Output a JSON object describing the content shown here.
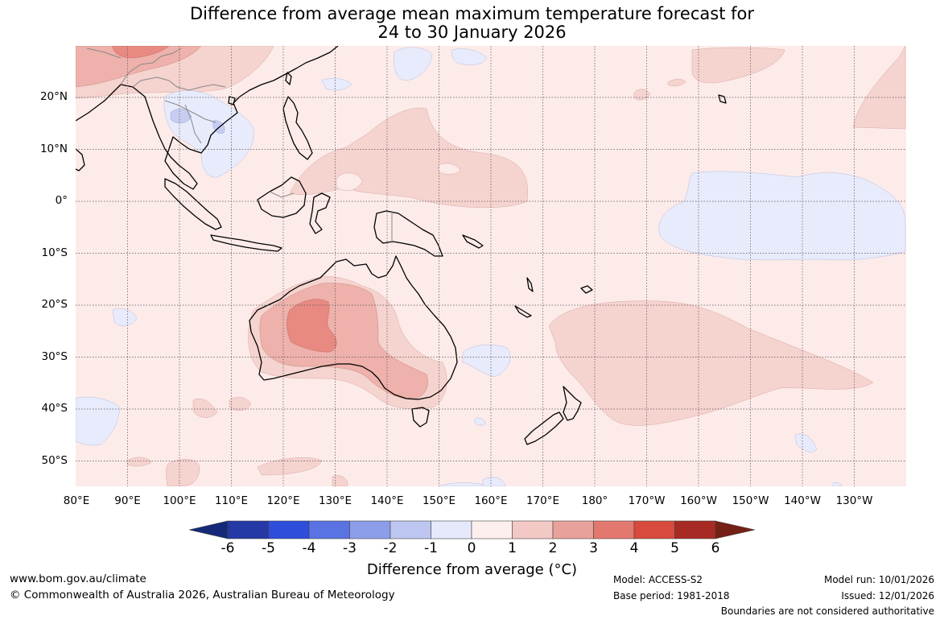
{
  "title": {
    "line1": "Difference from average mean maximum temperature forecast for",
    "line2": "24 to 30 January 2026"
  },
  "map": {
    "latitude_labels": [
      "20°N",
      "10°N",
      "0°",
      "10°S",
      "20°S",
      "30°S",
      "40°S",
      "50°S"
    ],
    "longitude_labels": [
      "80°E",
      "90°E",
      "100°E",
      "110°E",
      "120°E",
      "130°E",
      "140°E",
      "150°E",
      "160°E",
      "170°E",
      "180°",
      "170°W",
      "160°W",
      "150°W",
      "140°W",
      "130°W"
    ],
    "latitude_values": [
      20,
      10,
      0,
      -10,
      -20,
      -30,
      -40,
      -50
    ],
    "longitude_values": [
      80,
      90,
      100,
      110,
      120,
      130,
      140,
      150,
      160,
      170,
      180,
      190,
      200,
      210,
      220,
      230
    ],
    "extent": {
      "lon_min": 80,
      "lon_max": 240,
      "lat_min": -55,
      "lat_max": 30
    }
  },
  "colorbar": {
    "ticks": [
      "-6",
      "-5",
      "-4",
      "-3",
      "-2",
      "-1",
      "0",
      "1",
      "2",
      "3",
      "4",
      "5",
      "6"
    ],
    "colors": [
      "#142a78",
      "#2438a6",
      "#2e4ddb",
      "#5a73e3",
      "#8c9ee9",
      "#bcc6f1",
      "#e5e9fb",
      "#fcefed",
      "#f2c9c4",
      "#e8a19b",
      "#e3786f",
      "#d84a3d",
      "#a82a24",
      "#742014"
    ],
    "label": "Difference from average (°C)"
  },
  "footer": {
    "url": "www.bom.gov.au/climate",
    "copyright": "© Commonwealth of Australia 2026, Australian Bureau of Meteorology",
    "model": "Model: ACCESS-S2",
    "base_period": "Base period: 1981-2018",
    "model_run": "Model run: 10/01/2026",
    "issued": "Issued: 12/01/2026",
    "disclaimer": "Boundaries are not considered authoritative"
  }
}
